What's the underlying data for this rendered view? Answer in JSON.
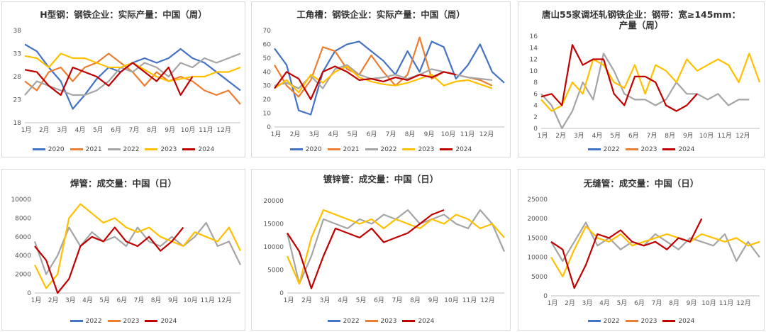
{
  "colors": {
    "2020": "#4472c4",
    "2021": "#ed7d31",
    "2022": "#a5a5a5",
    "2023": "#ffc000",
    "2024": "#c00000"
  },
  "chart_data": [
    {
      "type": "line",
      "title": "H型钢：钢铁企业：实际产量：中国（周）",
      "y_ticks": [
        "38",
        "33",
        "28",
        "23",
        "18"
      ],
      "ylim": [
        18,
        38
      ],
      "x_labels": [
        "1月",
        "2月",
        "3月",
        "4月",
        "5月",
        "6月",
        "7月",
        "8月",
        "9月",
        "10月",
        "11月",
        "12月"
      ],
      "series": [
        {
          "name": "2020",
          "values": [
            35,
            33.5,
            30,
            27,
            21,
            24,
            27.5,
            30,
            29,
            31,
            32,
            31,
            32,
            34,
            32,
            31,
            29,
            27,
            25
          ]
        },
        {
          "name": "2021",
          "values": [
            27,
            25,
            29,
            30,
            27,
            30,
            31,
            33,
            31,
            29,
            26,
            29,
            27,
            28,
            27,
            25,
            24,
            25,
            22
          ]
        },
        {
          "name": "2022",
          "values": [
            24,
            27,
            26,
            25,
            24,
            24,
            25,
            27,
            30,
            29,
            31,
            30,
            28,
            31,
            30,
            32,
            31,
            32,
            33
          ]
        },
        {
          "name": "2023",
          "values": [
            32.5,
            32,
            30,
            33,
            32,
            32,
            31,
            30,
            30,
            31,
            29.5,
            28,
            27,
            27.5,
            28,
            28,
            29,
            29,
            30
          ]
        },
        {
          "name": "2024",
          "values": [
            29.5,
            29,
            26,
            24,
            30,
            29,
            28,
            26,
            29,
            31,
            29,
            27,
            30,
            24,
            28
          ]
        }
      ]
    },
    {
      "type": "line",
      "title": "工角槽：钢铁企业：实际产量：中国（周）",
      "y_ticks": [
        "70",
        "60",
        "50",
        "40",
        "30",
        "20",
        "10",
        "0"
      ],
      "ylim": [
        0,
        70
      ],
      "x_labels": [
        "1月",
        "2月",
        "3月",
        "4月",
        "5月",
        "6月",
        "7月",
        "8月",
        "9月",
        "10月",
        "11月",
        "12月"
      ],
      "series": [
        {
          "name": "2020",
          "values": [
            57,
            45,
            12,
            9,
            40,
            55,
            60,
            62,
            55,
            48,
            38,
            55,
            40,
            62,
            58,
            35,
            45,
            60,
            40,
            32
          ]
        },
        {
          "name": "2021",
          "values": [
            45,
            30,
            22,
            34,
            58,
            55,
            42,
            38,
            52,
            40,
            30,
            38,
            65,
            35,
            40,
            38,
            36,
            34,
            30
          ]
        },
        {
          "name": "2022",
          "values": [
            30,
            32,
            28,
            37,
            28,
            42,
            45,
            38,
            35,
            36,
            38,
            35,
            38,
            42,
            40,
            38,
            36,
            35,
            34
          ]
        },
        {
          "name": "2023",
          "values": [
            28,
            34,
            25,
            38,
            32,
            40,
            44,
            36,
            33,
            31,
            30,
            32,
            35,
            38,
            30,
            33,
            34,
            31,
            28
          ]
        },
        {
          "name": "2024",
          "values": [
            28,
            40,
            35,
            20,
            40,
            44,
            40,
            34,
            35,
            33,
            36,
            34,
            38,
            36,
            40,
            38
          ]
        }
      ]
    },
    {
      "type": "line",
      "title": "唐山55家调坯轧钢铁企业：钢带：宽≥145mm：产量（周）",
      "y_ticks": [
        "16",
        "14",
        "12",
        "10",
        "8",
        "6",
        "4",
        "2",
        "0"
      ],
      "ylim": [
        0,
        16
      ],
      "x_labels": [
        "1月",
        "2月",
        "3月",
        "4月",
        "5月",
        "6月",
        "7月",
        "8月",
        "9月",
        "10月",
        "11月",
        "12月"
      ],
      "series": [
        {
          "name": "2022",
          "values": [
            6,
            4,
            0,
            3,
            8,
            5,
            13,
            10,
            6,
            5,
            5,
            4,
            5,
            8,
            6,
            6,
            5,
            6,
            4,
            5,
            5
          ]
        },
        {
          "name": "2023",
          "values": [
            5,
            3,
            4,
            8,
            6,
            12,
            11,
            8,
            7,
            11,
            6,
            11,
            10,
            8,
            12,
            10,
            11,
            12,
            11,
            8,
            13,
            8
          ]
        },
        {
          "name": "2024",
          "values": [
            5.5,
            6,
            4,
            14.5,
            11,
            12,
            12,
            6,
            4,
            9,
            9,
            8,
            4,
            3,
            4,
            6
          ]
        }
      ]
    },
    {
      "type": "line",
      "title": "焊管：成交量：中国（日）",
      "y_ticks": [
        "10000",
        "8000",
        "6000",
        "4000",
        "2000",
        "0"
      ],
      "ylim": [
        0,
        10000
      ],
      "x_labels": [
        "1月",
        "2月",
        "3月",
        "4月",
        "5月",
        "6月",
        "7月",
        "8月",
        "9月",
        "10月",
        "11月",
        "12月"
      ],
      "series": [
        {
          "name": "2022",
          "values": [
            5500,
            2000,
            4000,
            7000,
            5000,
            6500,
            5500,
            6000,
            5000,
            7000,
            5500,
            5000,
            6000,
            5000,
            6000,
            7500,
            5000,
            5500,
            3000
          ]
        },
        {
          "name": "2023",
          "values": [
            3000,
            500,
            2000,
            8000,
            9500,
            8500,
            7500,
            8000,
            7000,
            6500,
            7000,
            6000,
            5500,
            5000,
            6500,
            6000,
            5500,
            7000,
            4500
          ]
        },
        {
          "name": "2024",
          "values": [
            5000,
            3500,
            0,
            1500,
            5000,
            6000,
            5500,
            7000,
            5500,
            5000,
            6000,
            4500,
            5500,
            7000
          ]
        }
      ]
    },
    {
      "type": "line",
      "title": "镀锌管：成交量：中国（日）",
      "y_ticks": [
        "20000",
        "15000",
        "10000",
        "5000",
        "0"
      ],
      "ylim": [
        0,
        20000
      ],
      "x_labels": [
        "1月",
        "2月",
        "3月",
        "4月",
        "5月",
        "6月",
        "7月",
        "8月",
        "9月",
        "10月",
        "11月",
        "12月"
      ],
      "series": [
        {
          "name": "2022",
          "values": [
            13000,
            2000,
            8000,
            16000,
            15000,
            14000,
            16000,
            15000,
            17000,
            16000,
            18000,
            15000,
            16000,
            17000,
            15000,
            14000,
            18000,
            15000,
            9000
          ]
        },
        {
          "name": "2023",
          "values": [
            8000,
            2000,
            12000,
            18000,
            17000,
            16000,
            15000,
            16000,
            14000,
            16000,
            15000,
            14000,
            16000,
            15000,
            17000,
            16000,
            14000,
            15000,
            12000
          ]
        },
        {
          "name": "2024",
          "values": [
            13000,
            9000,
            1000,
            8000,
            14000,
            13000,
            12000,
            14000,
            11000,
            12000,
            13000,
            15000,
            17000,
            18000
          ]
        }
      ]
    },
    {
      "type": "line",
      "title": "无缝管：成交量：中国（日）",
      "y_ticks": [
        "25000",
        "20000",
        "15000",
        "10000",
        "5000",
        "0"
      ],
      "ylim": [
        0,
        25000
      ],
      "x_labels": [
        "1月",
        "2月",
        "3月",
        "4月",
        "5月",
        "6月",
        "7月",
        "8月",
        "9月",
        "10月",
        "11月",
        "12月"
      ],
      "series": [
        {
          "name": "2022",
          "values": [
            14000,
            9000,
            14000,
            19000,
            13000,
            15000,
            12000,
            14000,
            13000,
            16000,
            14000,
            12000,
            15000,
            14000,
            13000,
            16000,
            9000,
            14000,
            10000
          ]
        },
        {
          "name": "2023",
          "values": [
            10000,
            5000,
            12000,
            18000,
            15000,
            14000,
            16000,
            13000,
            14000,
            15000,
            16000,
            15000,
            14000,
            16000,
            15000,
            14000,
            15000,
            13000,
            14000
          ]
        },
        {
          "name": "2024",
          "values": [
            14000,
            12000,
            2000,
            8000,
            16000,
            15000,
            17000,
            14000,
            13000,
            14000,
            12000,
            15000,
            14000,
            20000
          ]
        }
      ]
    }
  ]
}
